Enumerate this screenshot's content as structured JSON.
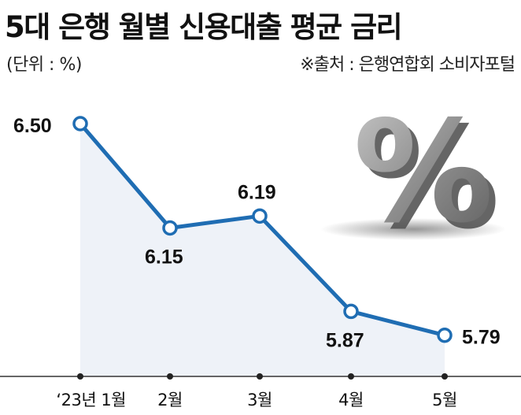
{
  "header": {
    "title": "5대 은행 월별 신용대출 평균 금리",
    "unit": "(단위 : %)",
    "source": "※출처 : 은행연합회 소비자포털"
  },
  "decoration": {
    "icon": "percent-icon",
    "glyph": "%"
  },
  "colors": {
    "line": "#1f6db3",
    "area": "#eef2f8",
    "marker_fill": "#ffffff",
    "axis": "#333333",
    "percent_sign": "#8a8a8a"
  },
  "chart_data": {
    "type": "line",
    "title": "5대 은행 월별 신용대출 평균 금리",
    "xlabel": "",
    "ylabel": "",
    "categories": [
      "‘23년 1월",
      "2월",
      "3월",
      "4월",
      "5월"
    ],
    "series": [
      {
        "values": [
          6.5,
          6.15,
          6.19,
          5.87,
          5.79
        ]
      }
    ],
    "value_labels": [
      "6.50",
      "6.15",
      "6.19",
      "5.87",
      "5.79"
    ],
    "grid": false,
    "area_fill": true,
    "ylim": [
      5.4,
      6.6
    ]
  }
}
